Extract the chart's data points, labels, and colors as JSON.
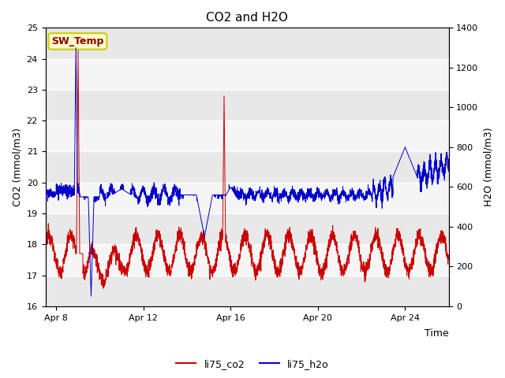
{
  "title": "CO2 and H2O",
  "xlabel": "Time",
  "ylabel_left": "CO2 (mmol/m3)",
  "ylabel_right": "H2O (mmol/m3)",
  "ylim_left": [
    16.0,
    25.0
  ],
  "ylim_right": [
    0,
    1400
  ],
  "yticks_left": [
    16.0,
    17.0,
    18.0,
    19.0,
    20.0,
    21.0,
    22.0,
    23.0,
    24.0,
    25.0
  ],
  "yticks_right": [
    0,
    200,
    400,
    600,
    800,
    1000,
    1200,
    1400
  ],
  "xtick_labels": [
    "Apr 8",
    "Apr 12",
    "Apr 16",
    "Apr 20",
    "Apr 24"
  ],
  "color_co2": "#cc0000",
  "color_h2o": "#0000cc",
  "legend_labels": [
    "li75_co2",
    "li75_h2o"
  ],
  "sw_temp_label": "SW_Temp",
  "sw_temp_box_facecolor": "#ffffcc",
  "sw_temp_box_edgecolor": "#cccc00",
  "sw_temp_text_color": "#8b0000",
  "background_color": "#ffffff",
  "plot_bg_color": "#ffffff",
  "band_colors": [
    "#e8e8e8",
    "#f5f5f5"
  ],
  "band_edges": [
    16.0,
    17.0,
    18.0,
    19.0,
    20.0,
    21.0,
    22.0,
    23.0,
    24.0,
    25.0
  ],
  "grid_color": "#ffffff",
  "n_points": 3000
}
